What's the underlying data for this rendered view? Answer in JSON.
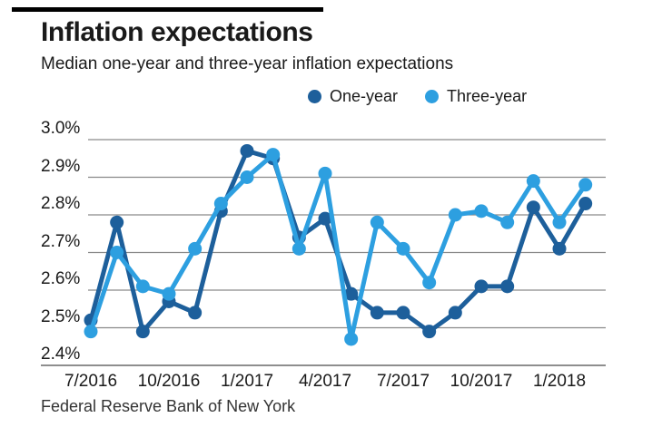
{
  "header": {
    "title": "Inflation expectations",
    "subtitle": "Median one-year and three-year inflation expectations"
  },
  "source": "Federal Reserve Bank of New York",
  "colors": {
    "one_year": "#1D5F9B",
    "three_year": "#2D9FE0",
    "gridline": "#8a8a8a",
    "axis": "#4a4a4a",
    "text": "#1a1a1a",
    "top_bar": "#000000"
  },
  "chart_data": {
    "type": "line",
    "title": "Inflation expectations",
    "subtitle": "Median one-year and three-year inflation expectations",
    "x": [
      "7/2016",
      "8/2016",
      "9/2016",
      "10/2016",
      "11/2016",
      "12/2016",
      "1/2017",
      "2/2017",
      "3/2017",
      "4/2017",
      "5/2017",
      "6/2017",
      "7/2017",
      "8/2017",
      "9/2017",
      "10/2017",
      "11/2017",
      "12/2017",
      "1/2018",
      "2/2018"
    ],
    "x_tick_labels": [
      "7/2016",
      "10/2016",
      "1/2017",
      "4/2017",
      "7/2017",
      "10/2017",
      "1/2018"
    ],
    "y_ticks": [
      "3.0%",
      "2.9%",
      "2.8%",
      "2.7%",
      "2.6%",
      "2.5%",
      "2.4%"
    ],
    "ylim": [
      2.4,
      3.0
    ],
    "grid": true,
    "legend_position": "top",
    "series": [
      {
        "name": "One-year",
        "color": "#1D5F9B",
        "values": [
          2.52,
          2.78,
          2.49,
          2.57,
          2.54,
          2.81,
          2.97,
          2.95,
          2.74,
          2.79,
          2.59,
          2.54,
          2.54,
          2.49,
          2.54,
          2.61,
          2.61,
          2.82,
          2.71,
          2.83
        ]
      },
      {
        "name": "Three-year",
        "color": "#2D9FE0",
        "values": [
          2.49,
          2.7,
          2.61,
          2.59,
          2.71,
          2.83,
          2.9,
          2.96,
          2.71,
          2.91,
          2.47,
          2.78,
          2.71,
          2.62,
          2.8,
          2.81,
          2.78,
          2.89,
          2.78,
          2.88
        ]
      }
    ]
  }
}
